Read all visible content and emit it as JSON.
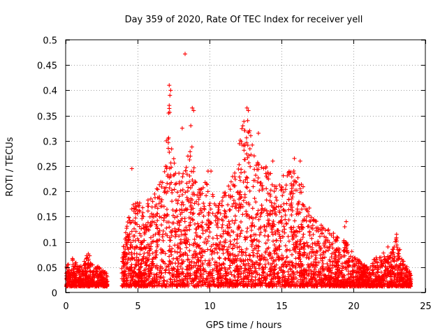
{
  "chart_data": {
    "type": "scatter",
    "title": "Day 359 of 2020, Rate Of TEC Index for receiver yell",
    "xlabel": "GPS time / hours",
    "ylabel": "ROTI / TECUs",
    "xlim": [
      0,
      25
    ],
    "ylim": [
      0,
      0.5
    ],
    "xticks": [
      0,
      5,
      10,
      15,
      20,
      25
    ],
    "yticks": [
      0,
      0.05,
      0.1,
      0.15,
      0.2,
      0.25,
      0.3,
      0.35,
      0.4,
      0.45,
      0.5
    ],
    "xtick_labels": [
      "0",
      "5",
      "10",
      "15",
      "20",
      "25"
    ],
    "ytick_labels": [
      "0",
      "0.05",
      "0.1",
      "0.15",
      "0.2",
      "0.25",
      "0.3",
      "0.35",
      "0.4",
      "0.45",
      "0.5"
    ],
    "grid": true,
    "marker": "+",
    "color": "#ff0000",
    "envelope": {
      "description": "approximate upper envelope of ROTI values by hour (data gap 2.9–3.9 h)",
      "x": [
        0.0,
        0.3,
        0.5,
        0.7,
        1.0,
        1.4,
        1.6,
        1.9,
        2.3,
        2.8,
        3.95,
        4.3,
        4.6,
        5.0,
        5.5,
        6.0,
        6.5,
        7.0,
        7.2,
        7.5,
        8.0,
        8.3,
        8.8,
        9.2,
        9.6,
        10.0,
        10.5,
        11.0,
        11.5,
        12.0,
        12.3,
        12.6,
        13.0,
        13.5,
        14.0,
        14.5,
        15.0,
        15.5,
        16.0,
        16.5,
        17.0,
        17.5,
        18.0,
        18.5,
        19.0,
        19.5,
        20.0,
        20.5,
        21.0,
        21.5,
        22.0,
        22.5,
        23.0,
        23.5,
        24.0
      ],
      "y": [
        0.05,
        0.06,
        0.07,
        0.06,
        0.05,
        0.07,
        0.08,
        0.06,
        0.05,
        0.04,
        0.09,
        0.14,
        0.17,
        0.19,
        0.17,
        0.2,
        0.22,
        0.26,
        0.39,
        0.27,
        0.23,
        0.26,
        0.29,
        0.2,
        0.22,
        0.24,
        0.17,
        0.2,
        0.22,
        0.28,
        0.34,
        0.36,
        0.29,
        0.25,
        0.26,
        0.21,
        0.23,
        0.24,
        0.26,
        0.22,
        0.16,
        0.14,
        0.13,
        0.12,
        0.11,
        0.1,
        0.08,
        0.06,
        0.05,
        0.07,
        0.08,
        0.07,
        0.11,
        0.06,
        0.04
      ]
    },
    "gap_hours": [
      2.9,
      3.9
    ],
    "notable_points": [
      {
        "x": 8.3,
        "y": 0.472
      },
      {
        "x": 7.2,
        "y": 0.41
      },
      {
        "x": 7.3,
        "y": 0.4
      },
      {
        "x": 7.25,
        "y": 0.39
      },
      {
        "x": 7.2,
        "y": 0.37
      },
      {
        "x": 7.15,
        "y": 0.355
      },
      {
        "x": 8.8,
        "y": 0.365
      },
      {
        "x": 8.9,
        "y": 0.36
      },
      {
        "x": 8.1,
        "y": 0.325
      },
      {
        "x": 8.7,
        "y": 0.33
      },
      {
        "x": 12.6,
        "y": 0.365
      },
      {
        "x": 12.7,
        "y": 0.36
      },
      {
        "x": 12.65,
        "y": 0.34
      },
      {
        "x": 13.4,
        "y": 0.315
      },
      {
        "x": 7.0,
        "y": 0.3
      },
      {
        "x": 9.9,
        "y": 0.24
      },
      {
        "x": 10.1,
        "y": 0.24
      },
      {
        "x": 4.6,
        "y": 0.245
      },
      {
        "x": 14.4,
        "y": 0.26
      },
      {
        "x": 15.9,
        "y": 0.265
      },
      {
        "x": 16.3,
        "y": 0.26
      },
      {
        "x": 19.5,
        "y": 0.14
      },
      {
        "x": 19.4,
        "y": 0.13
      },
      {
        "x": 23.0,
        "y": 0.115
      },
      {
        "x": 22.4,
        "y": 0.09
      }
    ]
  }
}
